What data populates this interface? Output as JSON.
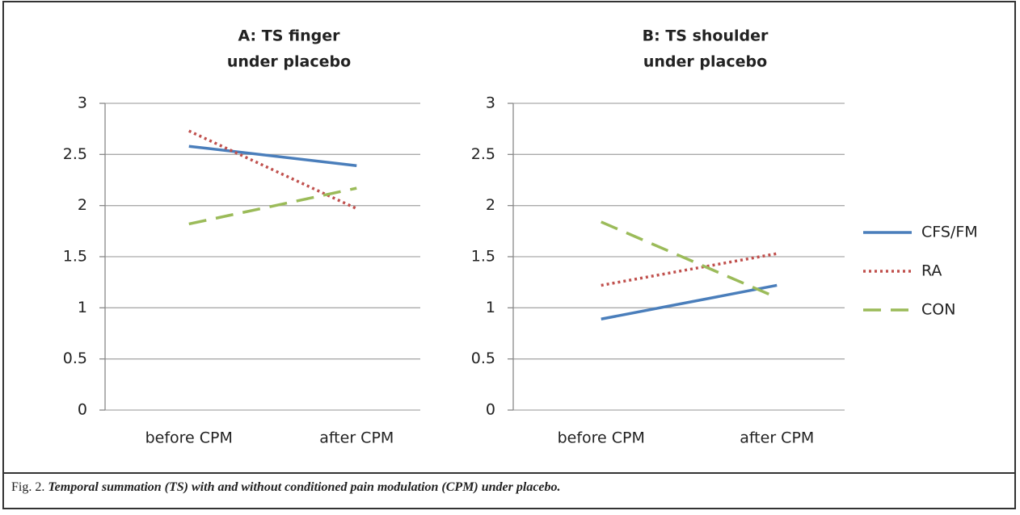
{
  "chart_data": [
    {
      "type": "line",
      "title": [
        "A: TS finger",
        "under placebo"
      ],
      "categories": [
        "before CPM",
        "after CPM"
      ],
      "series": [
        {
          "name": "CFS/FM",
          "color": "#4a7ebb",
          "dash": "solid",
          "values": [
            2.58,
            2.39
          ]
        },
        {
          "name": "RA",
          "color": "#c0504d",
          "dash": "dotted",
          "values": [
            2.73,
            1.97
          ]
        },
        {
          "name": "CON",
          "color": "#9bbb59",
          "dash": "dashed",
          "values": [
            1.82,
            2.17
          ]
        }
      ],
      "ylim": [
        0,
        3
      ],
      "yticks": [
        0,
        0.5,
        1,
        1.5,
        2,
        2.5,
        3
      ],
      "grid": true
    },
    {
      "type": "line",
      "title": [
        "B: TS shoulder",
        "under placebo"
      ],
      "categories": [
        "before CPM",
        "after CPM"
      ],
      "series": [
        {
          "name": "CFS/FM",
          "color": "#4a7ebb",
          "dash": "solid",
          "values": [
            0.89,
            1.22
          ]
        },
        {
          "name": "RA",
          "color": "#c0504d",
          "dash": "dotted",
          "values": [
            1.22,
            1.53
          ]
        },
        {
          "name": "CON",
          "color": "#9bbb59",
          "dash": "dashed",
          "values": [
            1.84,
            1.1
          ]
        }
      ],
      "ylim": [
        0,
        3
      ],
      "yticks": [
        0,
        0.5,
        1,
        1.5,
        2,
        2.5,
        3
      ],
      "grid": true,
      "legend": "right"
    }
  ],
  "caption": {
    "label": "Fig. 2.",
    "text": "Temporal summation (TS) with and without conditioned pain modulation (CPM) under placebo."
  }
}
